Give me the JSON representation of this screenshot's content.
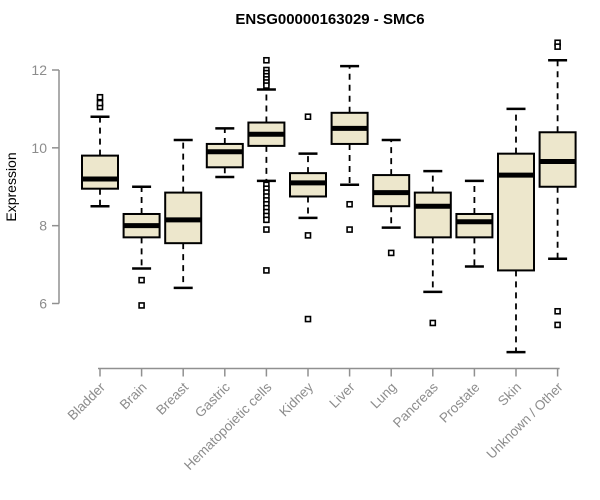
{
  "chart_data": {
    "type": "boxplot",
    "title": "ENSG00000163029 - SMC6",
    "ylabel": "Expression",
    "xlabel": "",
    "grid": false,
    "legend": "none",
    "yaxis": {
      "ticks": [
        6,
        8,
        10,
        12
      ],
      "range": [
        6,
        12
      ]
    },
    "categories": [
      "Bladder",
      "Brain",
      "Breast",
      "Gastric",
      "Hematopoietic cells",
      "Kidney",
      "Liver",
      "Lung",
      "Pancreas",
      "Prostate",
      "Skin",
      "Unknown / Other"
    ],
    "series": [
      {
        "name": "Bladder",
        "low": 8.5,
        "q1": 8.95,
        "median": 9.2,
        "q3": 9.8,
        "high": 10.8,
        "outliers": [
          11.05,
          11.15,
          11.3
        ]
      },
      {
        "name": "Brain",
        "low": 6.9,
        "q1": 7.7,
        "median": 8.0,
        "q3": 8.3,
        "high": 9.0,
        "outliers": [
          6.6,
          5.95
        ]
      },
      {
        "name": "Breast",
        "low": 6.4,
        "q1": 7.55,
        "median": 8.15,
        "q3": 8.85,
        "high": 10.2,
        "outliers": []
      },
      {
        "name": "Gastric",
        "low": 9.25,
        "q1": 9.5,
        "median": 9.9,
        "q3": 10.1,
        "high": 10.5,
        "outliers": []
      },
      {
        "name": "Hematopoietic cells",
        "low": 9.15,
        "q1": 10.05,
        "median": 10.35,
        "q3": 10.65,
        "high": 11.5,
        "outliers": [
          12.25,
          12.0,
          11.92,
          11.84,
          11.76,
          11.68,
          11.6,
          9.05,
          8.95,
          8.85,
          8.75,
          8.65,
          8.55,
          8.45,
          8.35,
          8.25,
          8.15,
          7.9,
          6.85
        ]
      },
      {
        "name": "Kidney",
        "low": 8.2,
        "q1": 8.75,
        "median": 9.1,
        "q3": 9.35,
        "high": 9.85,
        "outliers": [
          10.8,
          7.75,
          5.6
        ]
      },
      {
        "name": "Liver",
        "low": 9.05,
        "q1": 10.1,
        "median": 10.5,
        "q3": 10.9,
        "high": 12.1,
        "outliers": [
          8.55,
          7.9
        ]
      },
      {
        "name": "Lung",
        "low": 7.95,
        "q1": 8.5,
        "median": 8.85,
        "q3": 9.3,
        "high": 10.2,
        "outliers": [
          7.3
        ]
      },
      {
        "name": "Pancreas",
        "low": 6.3,
        "q1": 7.7,
        "median": 8.5,
        "q3": 8.85,
        "high": 9.4,
        "outliers": [
          5.5
        ]
      },
      {
        "name": "Prostate",
        "low": 6.95,
        "q1": 7.7,
        "median": 8.1,
        "q3": 8.3,
        "high": 9.15,
        "outliers": []
      },
      {
        "name": "Skin",
        "low": 4.75,
        "q1": 6.85,
        "median": 9.3,
        "q3": 9.85,
        "high": 11.0,
        "outliers": []
      },
      {
        "name": "Unknown / Other",
        "low": 7.15,
        "q1": 9.0,
        "median": 9.65,
        "q3": 10.4,
        "high": 12.25,
        "outliers": [
          12.7,
          12.6,
          5.8,
          5.45
        ]
      }
    ],
    "colors": {
      "box_fill": "#EDE7CC",
      "box_stroke": "#000000",
      "median": "#000000",
      "axis": "#909090",
      "tick_label": "#8C8C8C",
      "title": "#000000",
      "background": "#FFFFFF"
    }
  }
}
